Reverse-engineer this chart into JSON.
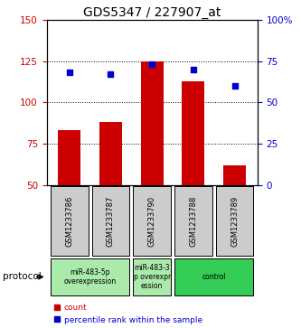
{
  "title": "GDS5347 / 227907_at",
  "samples": [
    "GSM1233786",
    "GSM1233787",
    "GSM1233790",
    "GSM1233788",
    "GSM1233789"
  ],
  "counts": [
    83,
    88,
    125,
    113,
    62
  ],
  "percentiles": [
    68,
    67,
    73,
    70,
    60
  ],
  "ylim_left": [
    50,
    150
  ],
  "ylim_right": [
    0,
    100
  ],
  "yticks_left": [
    50,
    75,
    100,
    125,
    150
  ],
  "yticks_right": [
    0,
    25,
    50,
    75,
    100
  ],
  "bar_color": "#cc0000",
  "dot_color": "#0000cc",
  "background_color": "#ffffff",
  "group_configs": [
    {
      "indices": [
        0,
        1
      ],
      "label": "miR-483-5p\noverexpression",
      "color": "#aaeaaa"
    },
    {
      "indices": [
        2
      ],
      "label": "miR-483-3\np overexpr\nession",
      "color": "#aaeaaa"
    },
    {
      "indices": [
        3,
        4
      ],
      "label": "control",
      "color": "#33cc55"
    }
  ],
  "protocol_label": "protocol",
  "legend_count_label": "count",
  "legend_pct_label": "percentile rank within the sample",
  "title_fontsize": 10,
  "axis_color_left": "#cc0000",
  "axis_color_right": "#0000cc",
  "sample_box_color": "#cccccc",
  "grid_yticks": [
    75,
    100,
    125
  ]
}
